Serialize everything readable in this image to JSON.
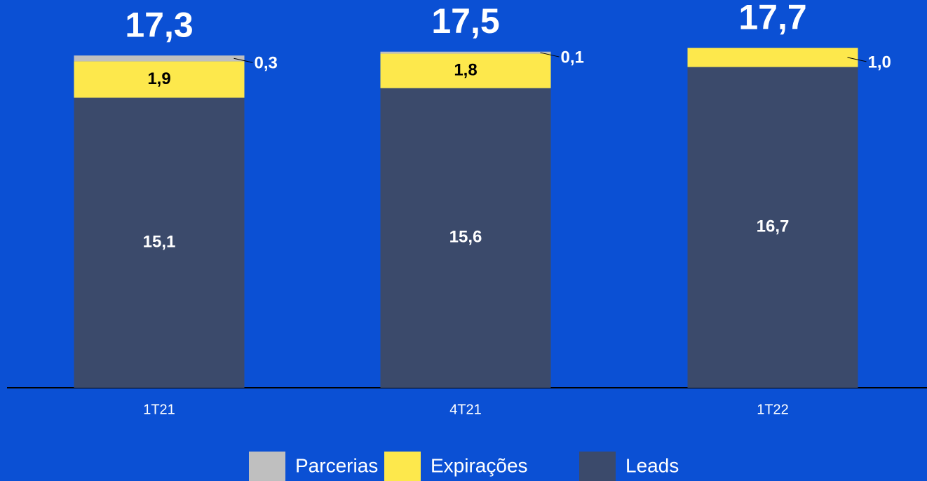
{
  "chart_data": {
    "type": "stacked_bar",
    "categories": [
      "1T21",
      "4T21",
      "1T22"
    ],
    "series": [
      {
        "name": "Leads",
        "color": "#3b4a6b",
        "values": [
          15.1,
          15.6,
          16.7
        ],
        "value_labels": [
          "15,1",
          "15,6",
          "16,7"
        ]
      },
      {
        "name": "Expirações",
        "color": "#fde84c",
        "values": [
          1.9,
          1.8,
          1.0
        ],
        "value_labels": [
          "1,9",
          "1,8",
          "1,0"
        ]
      },
      {
        "name": "Parcerias",
        "color": "#bfbfbf",
        "values": [
          0.3,
          0.1,
          null
        ],
        "value_labels": [
          "0,3",
          "0,1",
          null
        ]
      }
    ],
    "totals": [
      17.3,
      17.5,
      17.7
    ],
    "total_labels": [
      "17,3",
      "17,5",
      "17,7"
    ],
    "ylim": [
      0,
      18
    ]
  }
}
